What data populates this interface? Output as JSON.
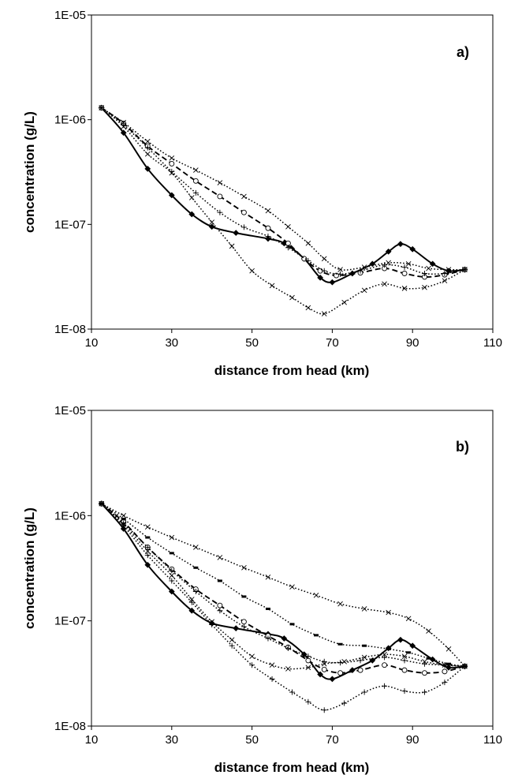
{
  "chart_data": [
    {
      "type": "line",
      "panel_label": "a)",
      "xlabel": "distance from head (km)",
      "ylabel": "concentration (g/L)",
      "xlim": [
        10,
        110
      ],
      "ylim": [
        1e-08,
        1e-05
      ],
      "yscale": "log",
      "x_ticks": [
        "10",
        "30",
        "50",
        "70",
        "90",
        "110"
      ],
      "y_ticks": [
        "1E-08",
        "1E-07",
        "1E-06",
        "1E-05"
      ],
      "grid": false,
      "legend": "none",
      "series": [
        {
          "style": "solid",
          "marker": "diamond",
          "points": [
            [
              12.5,
              1.3e-06
            ],
            [
              18,
              7.5e-07
            ],
            [
              24,
              3.4e-07
            ],
            [
              30,
              1.9e-07
            ],
            [
              35,
              1.25e-07
            ],
            [
              40,
              9.5e-08
            ],
            [
              46,
              8.3e-08
            ],
            [
              54,
              7.3e-08
            ],
            [
              58,
              6.6e-08
            ],
            [
              63,
              4.7e-08
            ],
            [
              67,
              3.1e-08
            ],
            [
              70,
              2.8e-08
            ],
            [
              75,
              3.4e-08
            ],
            [
              80,
              4.2e-08
            ],
            [
              84,
              5.5e-08
            ],
            [
              87,
              6.5e-08
            ],
            [
              90,
              5.8e-08
            ],
            [
              95,
              4.2e-08
            ],
            [
              99,
              3.6e-08
            ],
            [
              103,
              3.7e-08
            ]
          ]
        },
        {
          "style": "dashed",
          "marker": "circle",
          "points": [
            [
              12.5,
              1.3e-06
            ],
            [
              18,
              9.2e-07
            ],
            [
              24,
              5.6e-07
            ],
            [
              30,
              3.8e-07
            ],
            [
              36,
              2.6e-07
            ],
            [
              42,
              1.85e-07
            ],
            [
              48,
              1.3e-07
            ],
            [
              54,
              9.2e-08
            ],
            [
              59,
              6.6e-08
            ],
            [
              63,
              4.7e-08
            ],
            [
              67,
              3.6e-08
            ],
            [
              71,
              3.25e-08
            ],
            [
              77,
              3.45e-08
            ],
            [
              83,
              3.8e-08
            ],
            [
              88,
              3.4e-08
            ],
            [
              93,
              3.15e-08
            ],
            [
              98,
              3.3e-08
            ],
            [
              103,
              3.7e-08
            ]
          ]
        },
        {
          "style": "dotted",
          "marker": "x",
          "points": [
            [
              12.5,
              1.3e-06
            ],
            [
              18,
              9.4e-07
            ],
            [
              24,
              6.2e-07
            ],
            [
              30,
              4.3e-07
            ],
            [
              36,
              3.3e-07
            ],
            [
              42,
              2.5e-07
            ],
            [
              48,
              1.85e-07
            ],
            [
              54,
              1.35e-07
            ],
            [
              59,
              9.5e-08
            ],
            [
              64,
              6.6e-08
            ],
            [
              68,
              4.7e-08
            ],
            [
              72,
              3.7e-08
            ],
            [
              78,
              3.9e-08
            ],
            [
              84,
              4.3e-08
            ],
            [
              89,
              4.2e-08
            ],
            [
              94,
              3.8e-08
            ],
            [
              99,
              3.7e-08
            ],
            [
              103,
              3.7e-08
            ]
          ]
        },
        {
          "style": "dotted",
          "marker": "x",
          "points": [
            [
              12.5,
              1.3e-06
            ],
            [
              18,
              8.6e-07
            ],
            [
              24,
              4.7e-07
            ],
            [
              30,
              3.1e-07
            ],
            [
              35,
              1.8e-07
            ],
            [
              40,
              1.05e-07
            ],
            [
              45,
              6.2e-08
            ],
            [
              50,
              3.6e-08
            ],
            [
              55,
              2.6e-08
            ],
            [
              60,
              2e-08
            ],
            [
              64,
              1.6e-08
            ],
            [
              68,
              1.4e-08
            ],
            [
              73,
              1.8e-08
            ],
            [
              78,
              2.35e-08
            ],
            [
              83,
              2.7e-08
            ],
            [
              88,
              2.45e-08
            ],
            [
              93,
              2.5e-08
            ],
            [
              98,
              2.9e-08
            ],
            [
              103,
              3.7e-08
            ]
          ]
        },
        {
          "style": "dotted",
          "marker": "plus",
          "points": [
            [
              12.5,
              1.3e-06
            ],
            [
              18,
              8.9e-07
            ],
            [
              24,
              5.4e-07
            ],
            [
              30,
              3.2e-07
            ],
            [
              36,
              2e-07
            ],
            [
              42,
              1.3e-07
            ],
            [
              48,
              9.4e-08
            ],
            [
              54,
              7.7e-08
            ],
            [
              59,
              6e-08
            ],
            [
              64,
              4.5e-08
            ],
            [
              68,
              3.6e-08
            ],
            [
              72,
              3.35e-08
            ],
            [
              77,
              3.6e-08
            ],
            [
              83,
              4.1e-08
            ],
            [
              88,
              3.9e-08
            ],
            [
              93,
              3.4e-08
            ],
            [
              98,
              3.4e-08
            ],
            [
              103,
              3.7e-08
            ]
          ]
        }
      ]
    },
    {
      "type": "line",
      "panel_label": "b)",
      "xlabel": "distance from head (km)",
      "ylabel": "concentration (g/L)",
      "xlim": [
        10,
        110
      ],
      "ylim": [
        1e-08,
        1e-05
      ],
      "yscale": "log",
      "x_ticks": [
        "10",
        "30",
        "50",
        "70",
        "90",
        "110"
      ],
      "y_ticks": [
        "1E-08",
        "1E-07",
        "1E-06",
        "1E-05"
      ],
      "grid": false,
      "legend": "none",
      "series": [
        {
          "style": "solid",
          "marker": "diamond",
          "points": [
            [
              12.5,
              1.3e-06
            ],
            [
              18,
              7.5e-07
            ],
            [
              24,
              3.4e-07
            ],
            [
              30,
              1.9e-07
            ],
            [
              35,
              1.25e-07
            ],
            [
              40,
              9.5e-08
            ],
            [
              46,
              8.5e-08
            ],
            [
              54,
              7.5e-08
            ],
            [
              58,
              6.8e-08
            ],
            [
              63,
              4.8e-08
            ],
            [
              67,
              3.1e-08
            ],
            [
              70,
              2.8e-08
            ],
            [
              75,
              3.4e-08
            ],
            [
              80,
              4.2e-08
            ],
            [
              84,
              5.5e-08
            ],
            [
              87,
              6.6e-08
            ],
            [
              90,
              5.8e-08
            ],
            [
              95,
              4.3e-08
            ],
            [
              99,
              3.6e-08
            ],
            [
              103,
              3.7e-08
            ]
          ]
        },
        {
          "style": "dashed",
          "marker": "circle",
          "points": [
            [
              12.5,
              1.3e-06
            ],
            [
              18,
              8.7e-07
            ],
            [
              24,
              5e-07
            ],
            [
              30,
              3.1e-07
            ],
            [
              36,
              2e-07
            ],
            [
              42,
              1.4e-07
            ],
            [
              48,
              9.8e-08
            ],
            [
              54,
              7.2e-08
            ],
            [
              59,
              5.6e-08
            ],
            [
              64,
              4.2e-08
            ],
            [
              68,
              3.45e-08
            ],
            [
              72,
              3.2e-08
            ],
            [
              77,
              3.4e-08
            ],
            [
              83,
              3.8e-08
            ],
            [
              88,
              3.4e-08
            ],
            [
              93,
              3.2e-08
            ],
            [
              98,
              3.3e-08
            ],
            [
              103,
              3.7e-08
            ]
          ]
        },
        {
          "style": "dotted",
          "marker": "dash",
          "points": [
            [
              12.5,
              1.3e-06
            ],
            [
              18,
              9.3e-07
            ],
            [
              24,
              6.2e-07
            ],
            [
              30,
              4.4e-07
            ],
            [
              36,
              3.2e-07
            ],
            [
              42,
              2.4e-07
            ],
            [
              48,
              1.7e-07
            ],
            [
              54,
              1.3e-07
            ],
            [
              60,
              9.3e-08
            ],
            [
              66,
              7.3e-08
            ],
            [
              72,
              6e-08
            ],
            [
              78,
              5.8e-08
            ],
            [
              84,
              5.4e-08
            ],
            [
              89,
              5e-08
            ],
            [
              94,
              4.4e-08
            ],
            [
              99,
              3.9e-08
            ],
            [
              103,
              3.7e-08
            ]
          ]
        },
        {
          "style": "dotted",
          "marker": "x",
          "points": [
            [
              12.5,
              1.3e-06
            ],
            [
              18,
              1e-06
            ],
            [
              24,
              7.8e-07
            ],
            [
              30,
              6.2e-07
            ],
            [
              36,
              5e-07
            ],
            [
              42,
              4e-07
            ],
            [
              48,
              3.2e-07
            ],
            [
              54,
              2.6e-07
            ],
            [
              60,
              2.1e-07
            ],
            [
              66,
              1.75e-07
            ],
            [
              72,
              1.45e-07
            ],
            [
              78,
              1.3e-07
            ],
            [
              84,
              1.2e-07
            ],
            [
              89,
              1.05e-07
            ],
            [
              94,
              8e-08
            ],
            [
              99,
              5.4e-08
            ],
            [
              103,
              3.7e-08
            ]
          ]
        },
        {
          "style": "dotted",
          "marker": "x",
          "points": [
            [
              12.5,
              1.3e-06
            ],
            [
              18,
              8.3e-07
            ],
            [
              24,
              4.6e-07
            ],
            [
              30,
              2.7e-07
            ],
            [
              35,
              1.6e-07
            ],
            [
              40,
              9.8e-08
            ],
            [
              45,
              6.6e-08
            ],
            [
              50,
              4.6e-08
            ],
            [
              55,
              3.8e-08
            ],
            [
              59,
              3.5e-08
            ],
            [
              64,
              3.6e-08
            ],
            [
              68,
              3.9e-08
            ],
            [
              73,
              4.1e-08
            ],
            [
              78,
              4.5e-08
            ],
            [
              83,
              4.8e-08
            ],
            [
              88,
              4.6e-08
            ],
            [
              93,
              4.1e-08
            ],
            [
              98,
              3.8e-08
            ],
            [
              103,
              3.7e-08
            ]
          ]
        },
        {
          "style": "dotted",
          "marker": "plus",
          "points": [
            [
              12.5,
              1.3e-06
            ],
            [
              18,
              8e-07
            ],
            [
              24,
              4.2e-07
            ],
            [
              30,
              2.4e-07
            ],
            [
              35,
              1.5e-07
            ],
            [
              40,
              9.2e-08
            ],
            [
              45,
              5.8e-08
            ],
            [
              50,
              3.8e-08
            ],
            [
              55,
              2.8e-08
            ],
            [
              60,
              2.1e-08
            ],
            [
              64,
              1.7e-08
            ],
            [
              68,
              1.42e-08
            ],
            [
              73,
              1.65e-08
            ],
            [
              78,
              2.1e-08
            ],
            [
              83,
              2.4e-08
            ],
            [
              88,
              2.15e-08
            ],
            [
              93,
              2.1e-08
            ],
            [
              98,
              2.6e-08
            ],
            [
              103,
              3.7e-08
            ]
          ]
        },
        {
          "style": "dotted",
          "marker": "plus",
          "points": [
            [
              12.5,
              1.3e-06
            ],
            [
              18,
              8.5e-07
            ],
            [
              24,
              5e-07
            ],
            [
              30,
              3e-07
            ],
            [
              36,
              1.9e-07
            ],
            [
              42,
              1.25e-07
            ],
            [
              48,
              8.8e-08
            ],
            [
              54,
              6.8e-08
            ],
            [
              59,
              5.5e-08
            ],
            [
              64,
              4.6e-08
            ],
            [
              68,
              4.1e-08
            ],
            [
              72,
              4e-08
            ],
            [
              77,
              4.2e-08
            ],
            [
              83,
              4.5e-08
            ],
            [
              88,
              4.2e-08
            ],
            [
              93,
              3.9e-08
            ],
            [
              98,
              3.8e-08
            ],
            [
              103,
              3.7e-08
            ]
          ]
        }
      ]
    }
  ]
}
